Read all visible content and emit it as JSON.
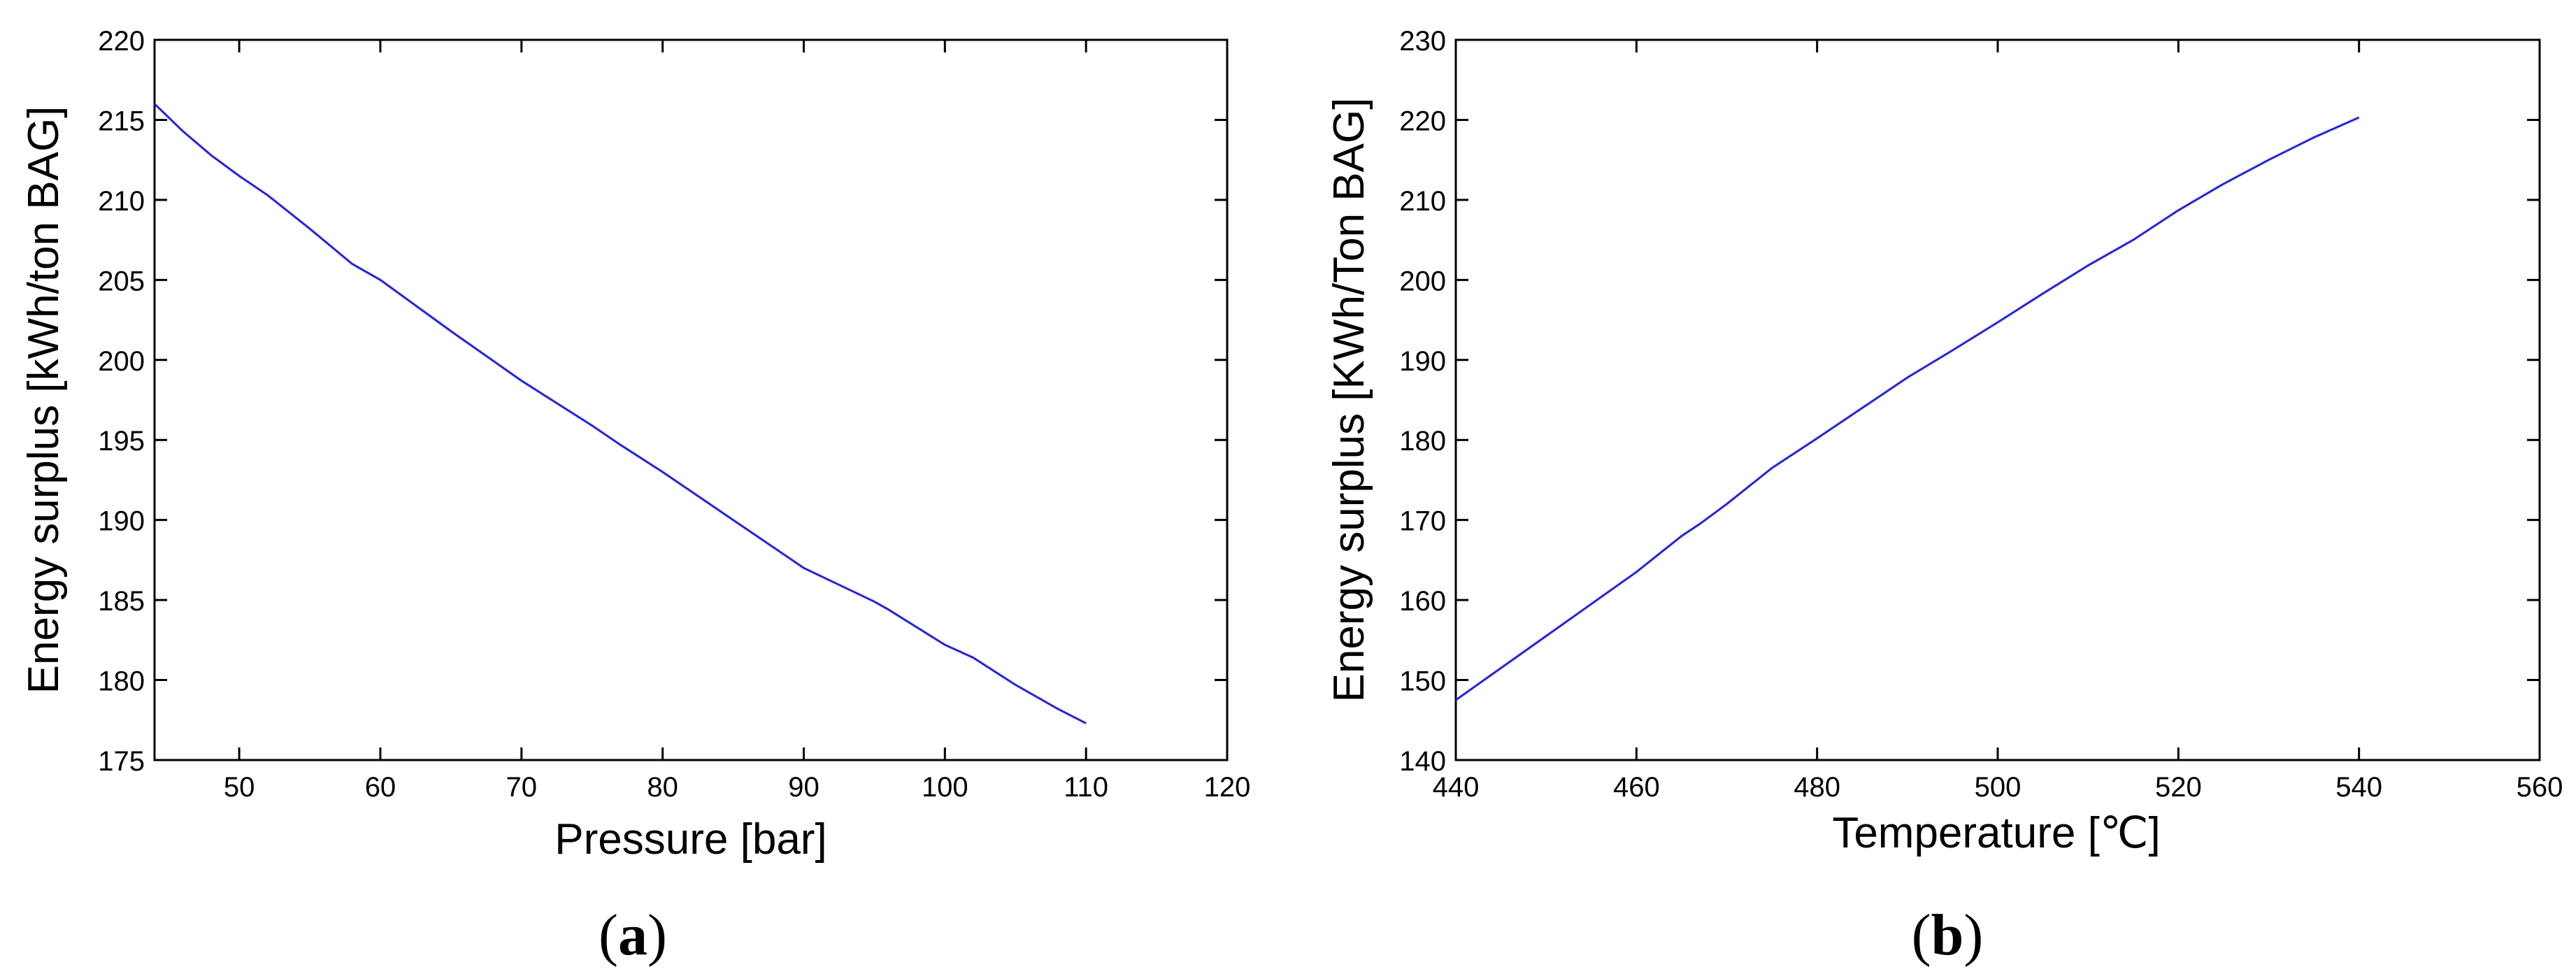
{
  "chart_data": [
    {
      "type": "line",
      "panel_label": {
        "open": "(",
        "letter": "a",
        "close": ")"
      },
      "title": "",
      "xlabel": "Pressure [bar]",
      "ylabel": "Energy surplus [kWh/ton BAG]",
      "xlim": [
        44,
        120
      ],
      "ylim": [
        175,
        220
      ],
      "xticks": [
        50,
        60,
        70,
        80,
        90,
        100,
        110,
        120
      ],
      "yticks": [
        175,
        180,
        185,
        190,
        195,
        200,
        205,
        210,
        215,
        220
      ],
      "grid": false,
      "line_color": "#1f1fff",
      "series": [
        {
          "x": [
            44,
            46,
            48,
            50,
            52,
            55,
            58,
            60,
            65,
            70,
            75,
            77,
            80,
            85,
            90,
            95,
            96,
            100,
            102,
            105,
            107,
            108,
            110
          ],
          "y": [
            216.0,
            214.3,
            212.8,
            211.5,
            210.3,
            208.2,
            206.0,
            205.0,
            201.8,
            198.7,
            195.9,
            194.7,
            193.0,
            190.0,
            187.0,
            184.9,
            184.4,
            182.2,
            181.4,
            179.7,
            178.7,
            178.2,
            177.3
          ]
        }
      ]
    },
    {
      "type": "line",
      "panel_label": {
        "open": "(",
        "letter": "b",
        "close": ")"
      },
      "title": "",
      "xlabel": "Temperature [℃]",
      "ylabel": "Energy surplus [KWh/Ton BAG]",
      "xlim": [
        440,
        560
      ],
      "ylim": [
        140,
        230
      ],
      "xticks": [
        440,
        460,
        480,
        500,
        520,
        540,
        560
      ],
      "yticks": [
        140,
        150,
        160,
        170,
        180,
        190,
        200,
        210,
        220,
        230
      ],
      "grid": false,
      "line_color": "#1f1fff",
      "series": [
        {
          "x": [
            440,
            445,
            450,
            455,
            460,
            465,
            467,
            470,
            475,
            480,
            485,
            490,
            495,
            500,
            505,
            510,
            515,
            520,
            525,
            530,
            535,
            540
          ],
          "y": [
            147.5,
            151.5,
            155.5,
            159.5,
            163.5,
            168.0,
            169.5,
            172.0,
            176.5,
            180.2,
            184.0,
            187.8,
            191.2,
            194.7,
            198.3,
            201.8,
            205.0,
            208.7,
            212.0,
            215.0,
            217.8,
            220.3
          ]
        }
      ]
    }
  ]
}
